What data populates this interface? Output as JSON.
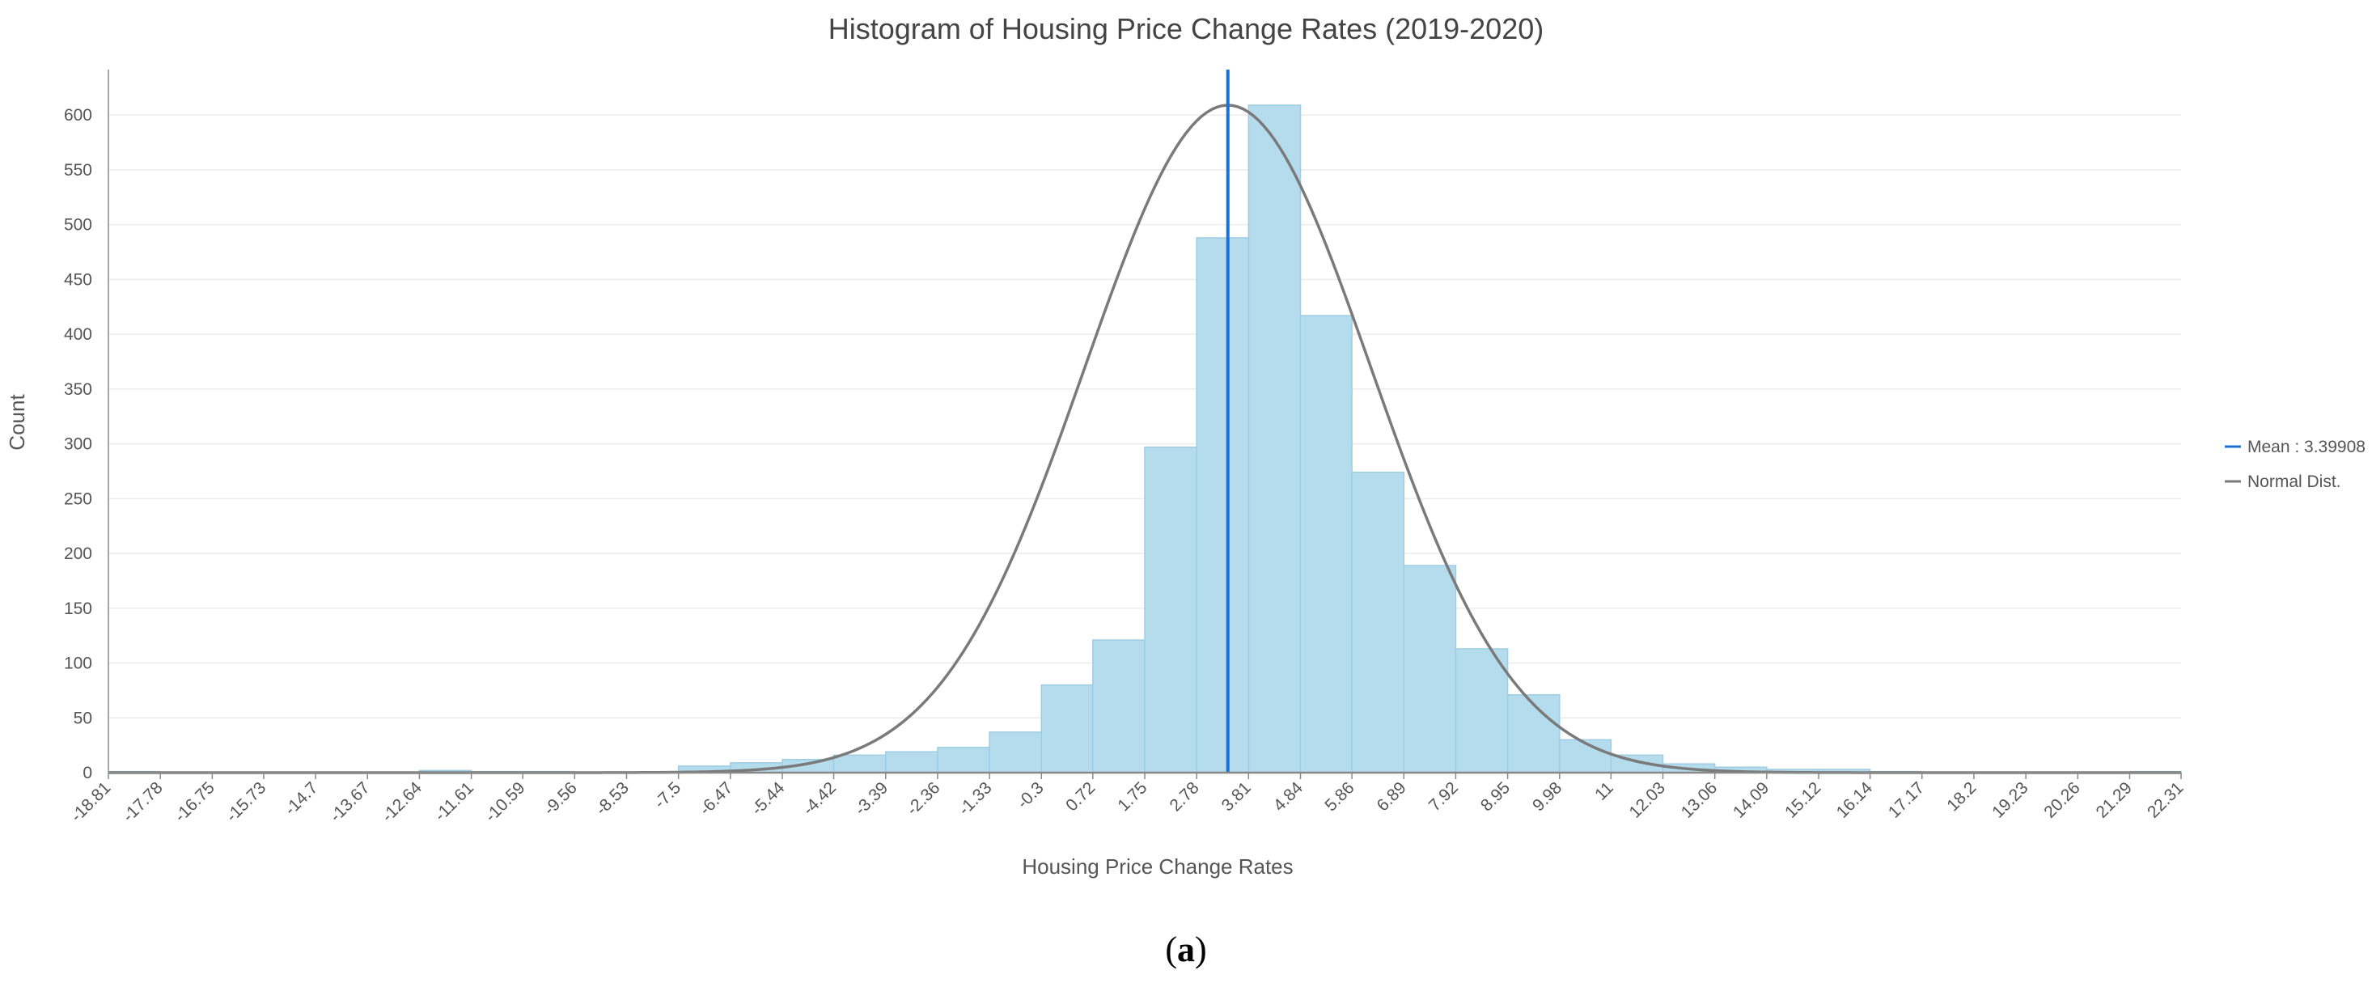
{
  "chart_data": {
    "type": "bar",
    "title": "Histogram of Housing Price Change Rates (2019-2020)",
    "xlabel": "Housing Price Change Rates",
    "ylabel": "Count",
    "xlim": [
      -18.81,
      22.31
    ],
    "ylim": [
      0,
      640
    ],
    "y_ticks": [
      0,
      50,
      100,
      150,
      200,
      250,
      300,
      350,
      400,
      450,
      500,
      550,
      600
    ],
    "x_tick_labels": [
      "-18.81",
      "-17.78",
      "-16.75",
      "-15.73",
      "-14.7",
      "-13.67",
      "-12.64",
      "-11.61",
      "-10.59",
      "-9.56",
      "-8.53",
      "-7.5",
      "-6.47",
      "-5.44",
      "-4.42",
      "-3.39",
      "-2.36",
      "-1.33",
      "-0.3",
      "0.72",
      "1.75",
      "2.78",
      "3.81",
      "4.84",
      "5.86",
      "6.89",
      "7.92",
      "8.95",
      "9.98",
      "11",
      "12.03",
      "13.06",
      "14.09",
      "15.12",
      "16.14",
      "17.17",
      "18.2",
      "19.23",
      "20.26",
      "21.29",
      "22.31"
    ],
    "bin_counts": [
      1,
      0,
      0,
      0,
      0,
      0,
      2,
      1,
      1,
      0,
      0,
      6,
      9,
      12,
      16,
      19,
      23,
      37,
      80,
      121,
      297,
      488,
      609,
      417,
      274,
      189,
      113,
      71,
      30,
      16,
      8,
      5,
      3,
      3,
      1,
      0,
      0,
      0,
      0,
      1
    ],
    "mean": 3.39908,
    "normal_curve": {
      "name": "Normal Dist.",
      "mean": 3.39908,
      "sd": 2.84,
      "peak": 609
    },
    "grid": true,
    "legend": {
      "position": "right",
      "mean_label": "Mean : 3.39908",
      "normal_label": "Normal Dist."
    },
    "colors": {
      "bar_fill": "#b5dced",
      "bar_stroke": "#9ecde3",
      "mean_line": "#1f6fd1",
      "normal_line": "#7a7a7a",
      "grid": "#ececec",
      "axis": "#888888"
    }
  },
  "caption": {
    "open": "(",
    "letter": "a",
    "close": ")"
  }
}
